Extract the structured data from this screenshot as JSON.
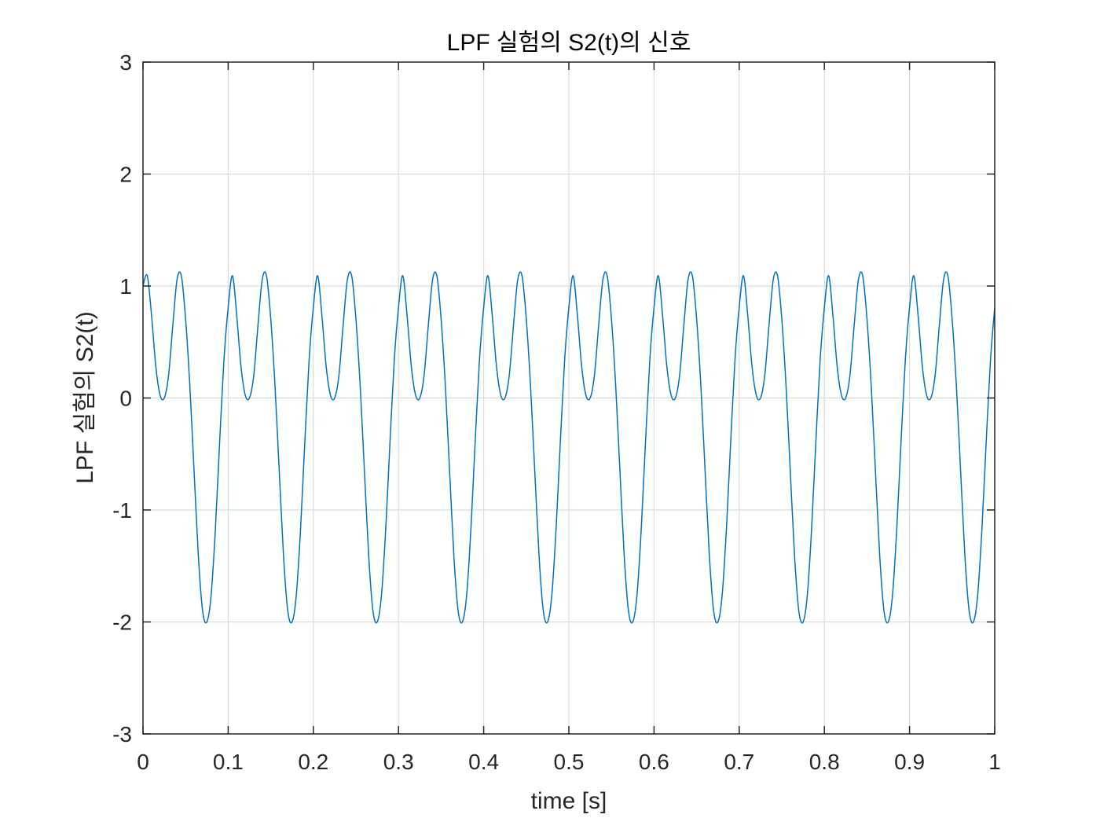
{
  "chart_data": {
    "type": "line",
    "title": "LPF 실험의 S2(t)의 신호",
    "xlabel": "time [s]",
    "ylabel": "LPF 실험의 S2(t)",
    "xlim": [
      0,
      1
    ],
    "ylim": [
      -3,
      3
    ],
    "xticks": [
      0,
      0.1,
      0.2,
      0.3,
      0.4,
      0.5,
      0.6,
      0.7,
      0.8,
      0.9,
      1
    ],
    "xtick_labels": [
      "0",
      "0.1",
      "0.2",
      "0.3",
      "0.4",
      "0.5",
      "0.6",
      "0.7",
      "0.8",
      "0.9",
      "1"
    ],
    "yticks": [
      -3,
      -2,
      -1,
      0,
      1,
      2,
      3
    ],
    "ytick_labels": [
      "-3",
      "-2",
      "-1",
      "0",
      "1",
      "2",
      "3"
    ],
    "grid": true,
    "colors": {
      "line": "#0072BD",
      "grid": "#dcdcdc",
      "axes": "#262626"
    },
    "series": [
      {
        "x": [
          0.0,
          0.005,
          0.01,
          0.015,
          0.02,
          0.025,
          0.03,
          0.035,
          0.04,
          0.045,
          0.05,
          0.055,
          0.06,
          0.065,
          0.07,
          0.075,
          0.08,
          0.085,
          0.09,
          0.095,
          0.1,
          0.105,
          0.11,
          0.115,
          0.12,
          0.125,
          0.13,
          0.135,
          0.14,
          0.145,
          0.15,
          0.155,
          0.16,
          0.165,
          0.17,
          0.175,
          0.18,
          0.185,
          0.19,
          0.195,
          0.2,
          0.205,
          0.21,
          0.215,
          0.22,
          0.225,
          0.23,
          0.235,
          0.24,
          0.245,
          0.25,
          0.255,
          0.26,
          0.265,
          0.27,
          0.275,
          0.28,
          0.285,
          0.29,
          0.295,
          0.3,
          0.305,
          0.31,
          0.315,
          0.32,
          0.325,
          0.33,
          0.335,
          0.34,
          0.345,
          0.35,
          0.355,
          0.36,
          0.365,
          0.37,
          0.375,
          0.38,
          0.385,
          0.39,
          0.395,
          0.4,
          0.405,
          0.41,
          0.415,
          0.42,
          0.425,
          0.43,
          0.435,
          0.44,
          0.445,
          0.45,
          0.455,
          0.46,
          0.465,
          0.47,
          0.475,
          0.48,
          0.485,
          0.49,
          0.495,
          0.5,
          0.505,
          0.51,
          0.515,
          0.52,
          0.525,
          0.53,
          0.535,
          0.54,
          0.545,
          0.55,
          0.555,
          0.56,
          0.565,
          0.57,
          0.575,
          0.58,
          0.585,
          0.59,
          0.595,
          0.6,
          0.605,
          0.61,
          0.615,
          0.62,
          0.625,
          0.63,
          0.635,
          0.64,
          0.645,
          0.65,
          0.655,
          0.66,
          0.665,
          0.67,
          0.675,
          0.68,
          0.685,
          0.69,
          0.695,
          0.7,
          0.705,
          0.71,
          0.715,
          0.72,
          0.725,
          0.73,
          0.735,
          0.74,
          0.745,
          0.75,
          0.755,
          0.76,
          0.765,
          0.77,
          0.775,
          0.78,
          0.785,
          0.79,
          0.795,
          0.8,
          0.805,
          0.81,
          0.815,
          0.82,
          0.825,
          0.83,
          0.835,
          0.84,
          0.845,
          0.85,
          0.855,
          0.86,
          0.865,
          0.87,
          0.875,
          0.88,
          0.885,
          0.89,
          0.895,
          0.9,
          0.905,
          0.91,
          0.915,
          0.92,
          0.925,
          0.93,
          0.935,
          0.94,
          0.945,
          0.95,
          0.955,
          0.96,
          0.965,
          0.97,
          0.975,
          0.98,
          0.985,
          0.99,
          0.995,
          1.0
        ],
        "y": [
          1.0,
          1.092,
          0.741,
          0.285,
          0.027,
          0.0,
          0.2,
          0.65,
          1.058,
          1.091,
          0.707,
          0.108,
          -0.658,
          -1.412,
          -1.902,
          -2.0,
          -1.76,
          -1.169,
          -0.392,
          0.335,
          0.809,
          1.092,
          0.741,
          0.285,
          0.027,
          0.0,
          0.2,
          0.65,
          1.058,
          1.091,
          0.707,
          0.108,
          -0.658,
          -1.412,
          -1.902,
          -2.0,
          -1.76,
          -1.169,
          -0.392,
          0.335,
          0.809,
          1.092,
          0.741,
          0.285,
          0.027,
          0.0,
          0.2,
          0.65,
          1.058,
          1.091,
          0.707,
          0.108,
          -0.658,
          -1.412,
          -1.902,
          -2.0,
          -1.76,
          -1.169,
          -0.392,
          0.335,
          0.809,
          1.092,
          0.741,
          0.285,
          0.027,
          0.0,
          0.2,
          0.65,
          1.058,
          1.091,
          0.707,
          0.108,
          -0.658,
          -1.412,
          -1.902,
          -2.0,
          -1.76,
          -1.169,
          -0.392,
          0.335,
          0.809,
          1.092,
          0.741,
          0.285,
          0.027,
          0.0,
          0.2,
          0.65,
          1.058,
          1.091,
          0.707,
          0.108,
          -0.658,
          -1.412,
          -1.902,
          -2.0,
          -1.76,
          -1.169,
          -0.392,
          0.335,
          0.809,
          1.092,
          0.741,
          0.285,
          0.027,
          0.0,
          0.2,
          0.65,
          1.058,
          1.091,
          0.707,
          0.108,
          -0.658,
          -1.412,
          -1.902,
          -2.0,
          -1.76,
          -1.169,
          -0.392,
          0.335,
          0.809,
          1.092,
          0.741,
          0.285,
          0.027,
          0.0,
          0.2,
          0.65,
          1.058,
          1.091,
          0.707,
          0.108,
          -0.658,
          -1.412,
          -1.902,
          -2.0,
          -1.76,
          -1.169,
          -0.392,
          0.335,
          0.809,
          1.092,
          0.741,
          0.285,
          0.027,
          0.0,
          0.2,
          0.65,
          1.058,
          1.091,
          0.707,
          0.108,
          -0.658,
          -1.412,
          -1.902,
          -2.0,
          -1.76,
          -1.169,
          -0.392,
          0.335,
          0.809,
          1.092,
          0.741,
          0.285,
          0.027,
          0.0,
          0.2,
          0.65,
          1.058,
          1.091,
          0.707,
          0.108,
          -0.658,
          -1.412,
          -1.902,
          -2.0,
          -1.76,
          -1.169,
          -0.392,
          0.335,
          0.809,
          1.092,
          0.741,
          0.285,
          0.027,
          0.0,
          0.2,
          0.65,
          1.058,
          1.091,
          0.707,
          0.108,
          -0.658,
          -1.412,
          -1.902,
          -2.0,
          -1.76,
          -1.169,
          -0.392,
          0.335,
          0.809
        ]
      }
    ]
  }
}
